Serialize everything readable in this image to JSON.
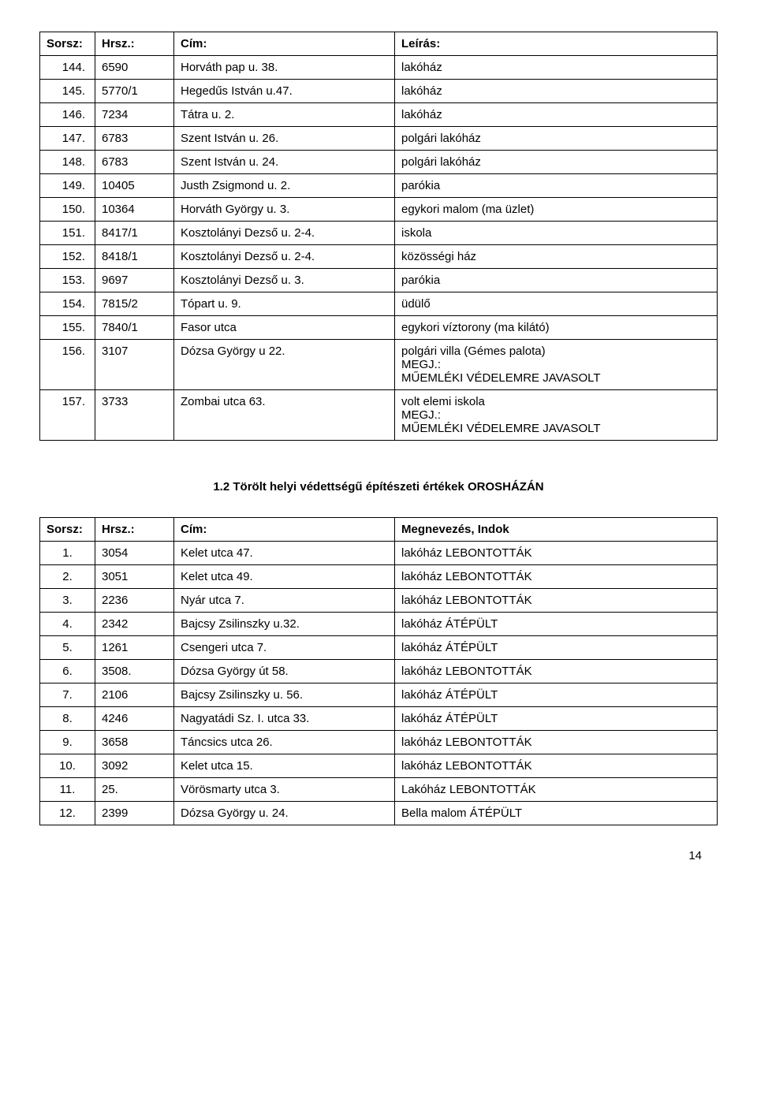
{
  "table1": {
    "headers": {
      "sorsz": "Sorsz:",
      "hrsz": "Hrsz.:",
      "cim": "Cím:",
      "leiras": "Leírás:"
    },
    "rows": [
      {
        "s": "144.",
        "h": "6590",
        "c": "Horváth pap u. 38.",
        "l": "lakóház"
      },
      {
        "s": "145.",
        "h": "5770/1",
        "c": "Hegedűs István u.47.",
        "l": "lakóház"
      },
      {
        "s": "146.",
        "h": "7234",
        "c": "Tátra u. 2.",
        "l": "lakóház"
      },
      {
        "s": "147.",
        "h": "6783",
        "c": "Szent István u. 26.",
        "l": "polgári lakóház"
      },
      {
        "s": "148.",
        "h": "6783",
        "c": "Szent István u. 24.",
        "l": "polgári lakóház"
      },
      {
        "s": "149.",
        "h": "10405",
        "c": "Justh Zsigmond u. 2.",
        "l": "parókia"
      },
      {
        "s": "150.",
        "h": "10364",
        "c": "Horváth György u. 3.",
        "l": "egykori malom (ma üzlet)"
      },
      {
        "s": "151.",
        "h": "8417/1",
        "c": "Kosztolányi Dezső u. 2-4.",
        "l": "iskola"
      },
      {
        "s": "152.",
        "h": "8418/1",
        "c": "Kosztolányi Dezső u. 2-4.",
        "l": "közösségi ház"
      },
      {
        "s": "153.",
        "h": "9697",
        "c": "Kosztolányi Dezső u. 3.",
        "l": "parókia"
      },
      {
        "s": "154.",
        "h": "7815/2",
        "c": "Tópart u. 9.",
        "l": "üdülő"
      },
      {
        "s": "155.",
        "h": "7840/1",
        "c": "Fasor utca",
        "l": "egykori víztorony (ma kilátó)"
      },
      {
        "s": "156.",
        "h": "3107",
        "c": "Dózsa György u 22.",
        "l": "polgári villa (Gémes palota)\nMEGJ.:\nMŰEMLÉKI VÉDELEMRE JAVASOLT"
      },
      {
        "s": "157.",
        "h": "3733",
        "c": "Zombai utca 63.",
        "l": "volt elemi iskola\nMEGJ.:\nMŰEMLÉKI VÉDELEMRE JAVASOLT"
      }
    ]
  },
  "section_title": "1.2 Törölt helyi védettségű építészeti értékek OROSHÁZÁN",
  "table2": {
    "headers": {
      "sorsz": "Sorsz:",
      "hrsz": "Hrsz.:",
      "cim": "Cím:",
      "megn": "Megnevezés, Indok"
    },
    "rows": [
      {
        "s": "1.",
        "h": "3054",
        "c": "Kelet utca 47.",
        "m": "lakóház LEBONTOTTÁK"
      },
      {
        "s": "2.",
        "h": "3051",
        "c": "Kelet utca 49.",
        "m": "lakóház LEBONTOTTÁK"
      },
      {
        "s": "3.",
        "h": "2236",
        "c": "Nyár utca 7.",
        "m": "lakóház LEBONTOTTÁK"
      },
      {
        "s": "4.",
        "h": "2342",
        "c": "Bajcsy Zsilinszky u.32.",
        "m": "lakóház ÁTÉPÜLT"
      },
      {
        "s": "5.",
        "h": "1261",
        "c": "Csengeri utca 7.",
        "m": "lakóház ÁTÉPÜLT"
      },
      {
        "s": "6.",
        "h": "3508.",
        "c": "Dózsa György út 58.",
        "m": "lakóház LEBONTOTTÁK"
      },
      {
        "s": "7.",
        "h": "2106",
        "c": "Bajcsy Zsilinszky u. 56.",
        "m": "lakóház ÁTÉPÜLT"
      },
      {
        "s": "8.",
        "h": "4246",
        "c": "Nagyatádi Sz. I. utca 33.",
        "m": "lakóház ÁTÉPÜLT"
      },
      {
        "s": "9.",
        "h": "3658",
        "c": "Táncsics utca 26.",
        "m": "lakóház LEBONTOTTÁK"
      },
      {
        "s": "10.",
        "h": "3092",
        "c": "Kelet utca 15.",
        "m": "lakóház LEBONTOTTÁK"
      },
      {
        "s": "11.",
        "h": "25.",
        "c": "Vörösmarty utca 3.",
        "m": "Lakóház LEBONTOTTÁK"
      },
      {
        "s": "12.",
        "h": "2399",
        "c": "Dózsa György u. 24.",
        "m": "Bella malom ÁTÉPÜLT"
      }
    ]
  },
  "page_number": "14"
}
